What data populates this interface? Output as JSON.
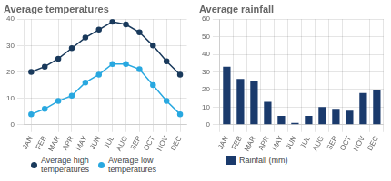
{
  "chart_data": [
    {
      "type": "line",
      "title": "Average temperatures",
      "categories": [
        "JAN",
        "FEB",
        "MAR",
        "APR",
        "MAY",
        "JUN",
        "JUL",
        "AUG",
        "SEP",
        "OCT",
        "NOV",
        "DEC"
      ],
      "series": [
        {
          "name": "Average high\ntemperatures",
          "color": "#1a3a5c",
          "marker": "circle",
          "values": [
            20,
            22,
            25,
            29,
            33,
            36,
            39,
            38,
            35,
            30,
            24,
            19
          ]
        },
        {
          "name": "Average low\ntemperatures",
          "color": "#29a8e0",
          "marker": "circle",
          "values": [
            4,
            6,
            9,
            11,
            16,
            19,
            23,
            23,
            21,
            15,
            9,
            4
          ]
        }
      ],
      "ylim": [
        0,
        40
      ],
      "yticks": [
        0,
        10,
        20,
        30,
        40
      ],
      "grid": true,
      "legend": "bottom"
    },
    {
      "type": "bar",
      "title": "Average rainfall",
      "categories": [
        "JAN",
        "FEB",
        "MAR",
        "APR",
        "MAY",
        "JUN",
        "JUL",
        "AUG",
        "SEP",
        "OCT",
        "NOV",
        "DEC"
      ],
      "series": [
        {
          "name": "Rainfall (mm)",
          "color": "#1a3a6c",
          "values": [
            33,
            26,
            25,
            13,
            5,
            1,
            5,
            10,
            9,
            8,
            18,
            20
          ]
        }
      ],
      "ylim": [
        0,
        60
      ],
      "yticks": [
        0,
        10,
        20,
        30,
        40,
        50,
        60
      ],
      "grid": true,
      "legend": "bottom"
    }
  ]
}
